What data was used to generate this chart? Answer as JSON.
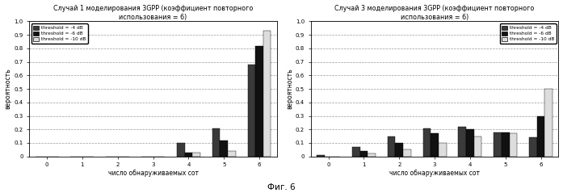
{
  "chart1": {
    "title": "Случай 1 моделирования 3GPP (коэффициент повторного\nиспользования = 6)",
    "categories": [
      0,
      1,
      2,
      3,
      4,
      5,
      6
    ],
    "series": [
      {
        "label": "threshold = -4 dB",
        "color": "#3a3a3a",
        "values": [
          0.0,
          0.0,
          0.0,
          0.0,
          0.1,
          0.21,
          0.68
        ]
      },
      {
        "label": "threshold = -6 dB",
        "color": "#111111",
        "values": [
          0.0,
          0.0,
          0.0,
          0.0,
          0.03,
          0.12,
          0.82
        ]
      },
      {
        "label": "threshold = -10 dB",
        "color": "#dddddd",
        "values": [
          0.0,
          0.0,
          0.0,
          0.0,
          0.03,
          0.04,
          0.93
        ]
      }
    ],
    "ylabel": "вероятность",
    "xlabel": "число обнаруживаемых сот",
    "ylim": [
      0,
      1
    ],
    "yticks": [
      0,
      0.1,
      0.2,
      0.3,
      0.4,
      0.5,
      0.6,
      0.7,
      0.8,
      0.9,
      1.0
    ],
    "legend_loc": "upper left"
  },
  "chart2": {
    "title": "Случай 3 моделирования 3GPP (коэффициент повторного\nиспользования = 6)",
    "categories": [
      0,
      1,
      2,
      3,
      4,
      5,
      6
    ],
    "series": [
      {
        "label": "threshold = -4 dB",
        "color": "#3a3a3a",
        "values": [
          0.01,
          0.07,
          0.15,
          0.21,
          0.22,
          0.18,
          0.14
        ]
      },
      {
        "label": "threshold = -6 dB",
        "color": "#111111",
        "values": [
          0.0,
          0.04,
          0.1,
          0.17,
          0.2,
          0.18,
          0.3
        ]
      },
      {
        "label": "threshold = -10 dB",
        "color": "#dddddd",
        "values": [
          0.0,
          0.02,
          0.05,
          0.1,
          0.15,
          0.17,
          0.5
        ]
      }
    ],
    "ylabel": "вероятность",
    "xlabel": "число обнаруживаемых сот",
    "ylim": [
      0,
      1
    ],
    "yticks": [
      0,
      0.1,
      0.2,
      0.3,
      0.4,
      0.5,
      0.6,
      0.7,
      0.8,
      0.9,
      1.0
    ],
    "legend_loc": "upper right"
  },
  "fig_label": "Фиг. 6",
  "background_color": "#ffffff",
  "title_fontsize": 5.8,
  "tick_fontsize": 5.0,
  "label_fontsize": 5.5,
  "legend_fontsize": 4.2,
  "bar_width": 0.22
}
